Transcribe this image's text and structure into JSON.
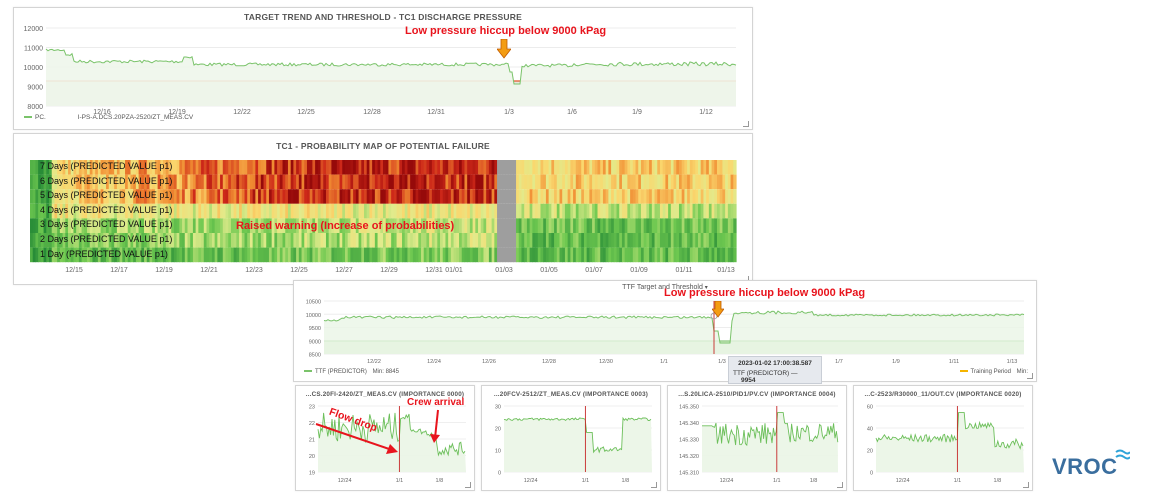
{
  "colors": {
    "trend_line": "#7ac36a",
    "threshold": "#e3562b",
    "annotation": "#e8141d",
    "brand": "#3a6e9e",
    "training_period": "#f5b400"
  },
  "panel1": {
    "title": "TARGET TREND AND THRESHOLD - TC1 DISCHARGE PRESSURE",
    "y_ticks": [
      "12000",
      "11000",
      "10000",
      "9000",
      "8000"
    ],
    "x_ticks": [
      "12/16",
      "12/19",
      "12/22",
      "12/25",
      "12/28",
      "12/31",
      "1/3",
      "1/6",
      "1/9",
      "1/12"
    ],
    "legend_prefix": "PC.",
    "legend_name": "I-PS-A.DCS.20PZA-2520/ZT_MEAS.CV",
    "annotation": "Low pressure hiccup below 9000 kPag",
    "arrow_icon": "down-arrow-icon"
  },
  "panel2": {
    "title": "TC1 - PROBABILITY MAP OF POTENTIAL FAILURE",
    "rows": [
      "7 Days (PREDICTED VALUE p1)",
      "6 Days (PREDICTED VALUE p1)",
      "5 Days (PREDICTED VALUE p1)",
      "4 Days (PREDICTED VALUE p1)",
      "3 Days (PREDICTED VALUE p1)",
      "2 Days (PREDICTED VALUE p1)",
      "1 Day (PREDICTED VALUE p1)"
    ],
    "x_ticks": [
      "12/15",
      "12/17",
      "12/19",
      "12/21",
      "12/23",
      "12/25",
      "12/27",
      "12/29",
      "12/31",
      "01/01",
      "01/03",
      "01/05",
      "01/07",
      "01/09",
      "01/11",
      "01/13"
    ],
    "annotation": "Raised warning (Increase of probabilities)"
  },
  "panel3": {
    "title": "TTF Target and Threshold",
    "dropdown_icon": "chevron-down-icon",
    "y_ticks": [
      "10500",
      "10000",
      "9500",
      "9000",
      "8500"
    ],
    "x_ticks": [
      "12/22",
      "12/24",
      "12/26",
      "12/28",
      "12/30",
      "1/1",
      "1/3",
      "1/5",
      "1/7",
      "1/9",
      "1/11",
      "1/13"
    ],
    "legend_series": "TTF (PREDICTOR)",
    "legend_min": "Min: 8845",
    "legend_right": "Training Period",
    "legend_right_min": "Min:",
    "annotation": "Low pressure hiccup below 9000 kPag",
    "tooltip_time": "2023-01-02 17:00:38.587",
    "tooltip_series": "TTF (PREDICTOR)",
    "tooltip_value": "9954"
  },
  "mini_panels": [
    {
      "title": "...CS.20FI-2420/ZT_MEAS.CV (IMPORTANCE 0000)",
      "y_ticks": [
        "23",
        "22",
        "21",
        "20",
        "19"
      ],
      "x_ticks": [
        "12/24",
        "1/1",
        "1/8"
      ]
    },
    {
      "title": "...20FCV-2512/ZT_MEAS.CV (IMPORTANCE 0003)",
      "y_ticks": [
        "30",
        "20",
        "10",
        "0"
      ],
      "x_ticks": [
        "12/24",
        "1/1",
        "1/8"
      ]
    },
    {
      "title": "...S.20LICA-2510/PID1/PV.CV (IMPORTANCE 0004)",
      "y_ticks": [
        "145.350",
        "145.340",
        "145.330",
        "145.320",
        "145.310"
      ],
      "x_ticks": [
        "12/24",
        "1/1",
        "1/8"
      ]
    },
    {
      "title": "...C-2523/R30000_11/OUT.CV (IMPORTANCE 0020)",
      "y_ticks": [
        "60",
        "40",
        "20",
        "0"
      ],
      "x_ticks": [
        "12/24",
        "1/1",
        "1/8"
      ]
    }
  ],
  "mini_annotations": {
    "flow_drop": "Flow drop",
    "crew_arrival": "Crew arrival"
  },
  "logo": {
    "text": "VROC",
    "icon": "signal-waves-icon"
  }
}
